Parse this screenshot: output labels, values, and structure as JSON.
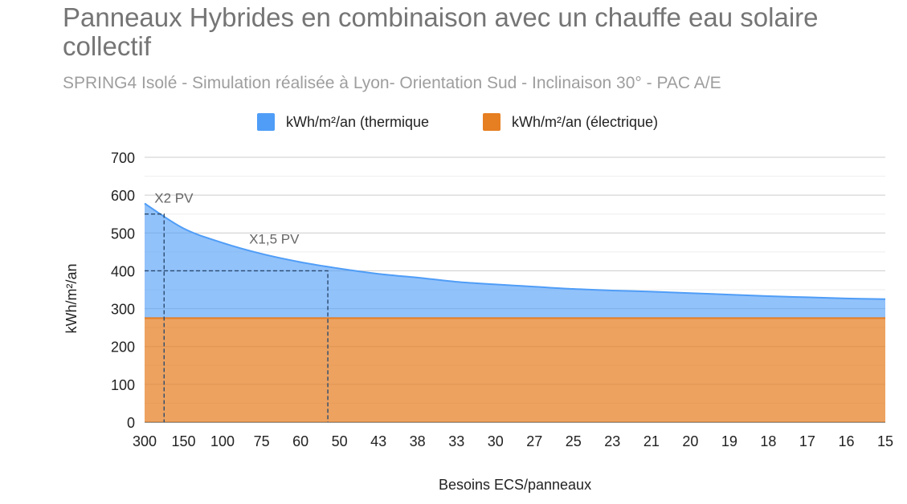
{
  "chart_data": {
    "type": "area",
    "title": "Panneaux Hybrides en combinaison avec un chauffe eau solaire collectif",
    "subtitle": "SPRING4 Isolé - Simulation réalisée à Lyon- Orientation Sud - Inclinaison 30° - PAC A/E",
    "xlabel": "Besoins ECS/panneaux",
    "ylabel": "kWh/m²/an",
    "ylim": [
      0,
      700
    ],
    "yticks": [
      0,
      100,
      200,
      300,
      400,
      500,
      600,
      700
    ],
    "categories": [
      "300",
      "150",
      "100",
      "75",
      "60",
      "50",
      "43",
      "38",
      "33",
      "30",
      "27",
      "25",
      "23",
      "21",
      "20",
      "19",
      "18",
      "17",
      "16",
      "15"
    ],
    "stacked": true,
    "grid": true,
    "legend_position": "top",
    "series": [
      {
        "name": "kWh/m²/an (électrique)",
        "color": "#e67e22",
        "values": [
          275,
          275,
          275,
          275,
          275,
          275,
          275,
          275,
          275,
          275,
          275,
          275,
          275,
          275,
          275,
          275,
          275,
          275,
          275,
          275
        ]
      },
      {
        "name": "kWh/m²/an (thermique",
        "color": "#4f9df7",
        "values": [
          303,
          237,
          199,
          170,
          148,
          131,
          117,
          107,
          96,
          89,
          83,
          77,
          73,
          70,
          66,
          62,
          58,
          55,
          52,
          50
        ]
      }
    ],
    "annotations": [
      {
        "text": "X2 PV",
        "x_index": 0.5,
        "y": 550
      },
      {
        "text": "X1,5 PV",
        "x_index": 4.7,
        "y": 400
      }
    ]
  }
}
